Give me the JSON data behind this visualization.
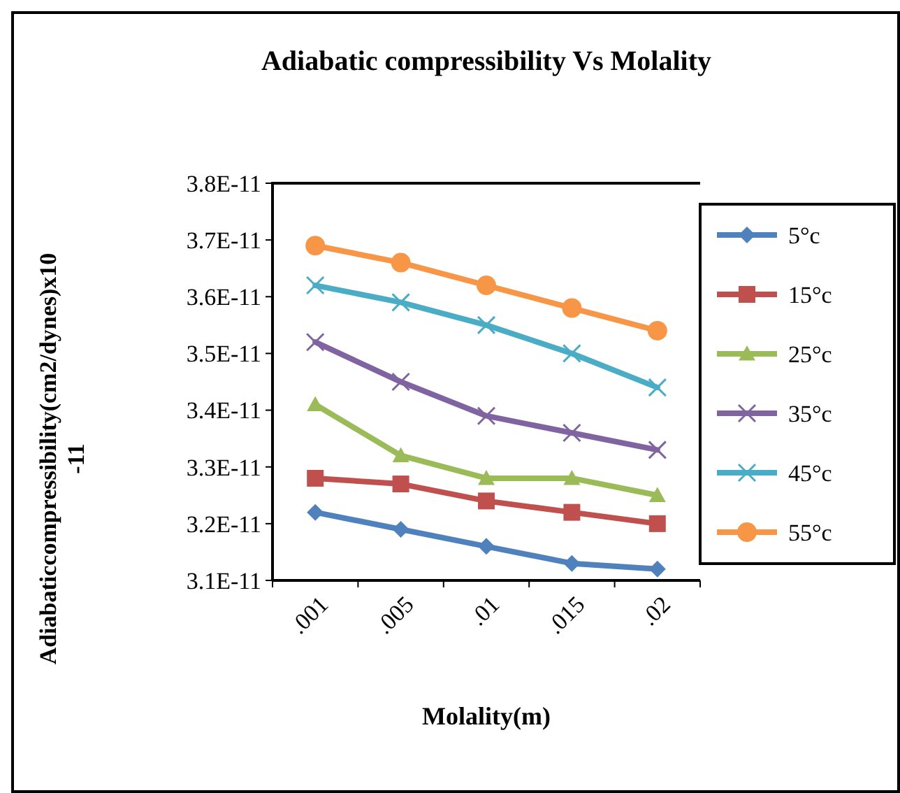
{
  "chart_data": {
    "type": "line",
    "title": "Adiabatic compressibility  Vs Molality",
    "xlabel": "Molality(m)",
    "ylabel": "Adiabaticcompressibility(cm2/dynes)x10\n-11",
    "categories": [
      ".001",
      ".005",
      ".01",
      ".015",
      ".02"
    ],
    "ylim": [
      3.1e-11,
      3.8e-11
    ],
    "yticks": [
      {
        "value": 3.1e-11,
        "label": "3.1E-11"
      },
      {
        "value": 3.2e-11,
        "label": "3.2E-11"
      },
      {
        "value": 3.3e-11,
        "label": "3.3E-11"
      },
      {
        "value": 3.4e-11,
        "label": "3.4E-11"
      },
      {
        "value": 3.5e-11,
        "label": "3.5E-11"
      },
      {
        "value": 3.6e-11,
        "label": "3.6E-11"
      },
      {
        "value": 3.7e-11,
        "label": "3.7E-11"
      },
      {
        "value": 3.8e-11,
        "label": "3.8E-11"
      }
    ],
    "grid": false,
    "legend": "right",
    "series": [
      {
        "name": "5°c",
        "color": "#4f81bd",
        "marker": "diamond",
        "values": [
          3.22e-11,
          3.19e-11,
          3.16e-11,
          3.13e-11,
          3.12e-11
        ]
      },
      {
        "name": "15°c",
        "color": "#c0504d",
        "marker": "square",
        "values": [
          3.28e-11,
          3.27e-11,
          3.24e-11,
          3.22e-11,
          3.2e-11
        ]
      },
      {
        "name": "25°c",
        "color": "#9bbb59",
        "marker": "triangle",
        "values": [
          3.41e-11,
          3.32e-11,
          3.28e-11,
          3.28e-11,
          3.25e-11
        ]
      },
      {
        "name": "35°c",
        "color": "#8064a2",
        "marker": "cross",
        "values": [
          3.52e-11,
          3.45e-11,
          3.39e-11,
          3.36e-11,
          3.33e-11
        ]
      },
      {
        "name": "45°c",
        "color": "#4bacc6",
        "marker": "cross",
        "values": [
          3.62e-11,
          3.59e-11,
          3.55e-11,
          3.5e-11,
          3.44e-11
        ]
      },
      {
        "name": "55°c",
        "color": "#f79646",
        "marker": "circle",
        "values": [
          3.69e-11,
          3.66e-11,
          3.62e-11,
          3.58e-11,
          3.54e-11
        ]
      }
    ]
  }
}
